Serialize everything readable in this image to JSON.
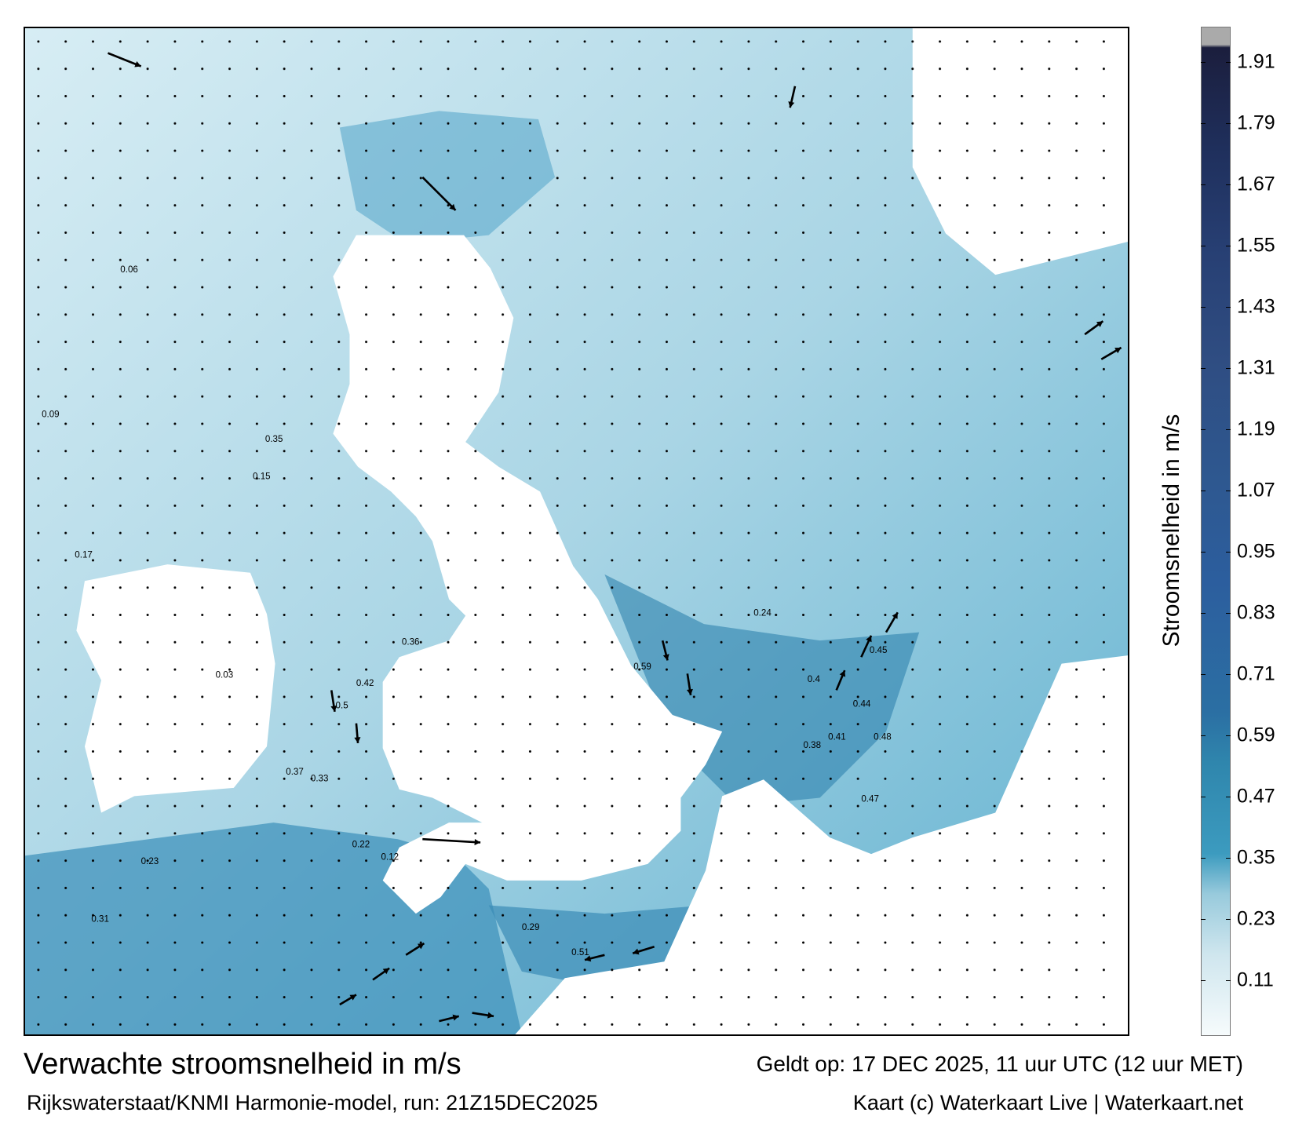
{
  "map": {
    "title": "Verwachte stroomsnelheid in m/s",
    "subtitle": "Rijkswaterstaat/KNMI Harmonie-model, run: 21Z15DEC2025",
    "valid_time": "Geldt op: 17 DEC 2025, 11 uur UTC (12 uur MET)",
    "credit": "Kaart (c) Waterkaart Live | Waterkaart.net",
    "colors": {
      "sea_light": "#bfe0ec",
      "sea_mid": "#4fa6c8",
      "sea_dark": "#2b6fa3",
      "land": "#ffffff"
    },
    "speed_labels": [
      "0.45",
      "0.38",
      "0.41",
      "0.5",
      "0.33",
      "0.48",
      "0.44",
      "0.36",
      "0.59",
      "0.42",
      "0.47",
      "0.51",
      "0.37",
      "0.4",
      "0.29",
      "0.24",
      "0.23",
      "0.17",
      "0.12",
      "0.09",
      "0.06",
      "0.03",
      "0.15",
      "0.22",
      "0.31",
      "0.35"
    ]
  },
  "colorbar": {
    "label": "Stroomsnelheid in m/s",
    "range": [
      0,
      1.98
    ],
    "ticks": [
      "1.91",
      "1.79",
      "1.67",
      "1.55",
      "1.43",
      "1.31",
      "1.19",
      "1.07",
      "0.95",
      "0.83",
      "0.71",
      "0.59",
      "0.47",
      "0.35",
      "0.23",
      "0.11"
    ]
  }
}
